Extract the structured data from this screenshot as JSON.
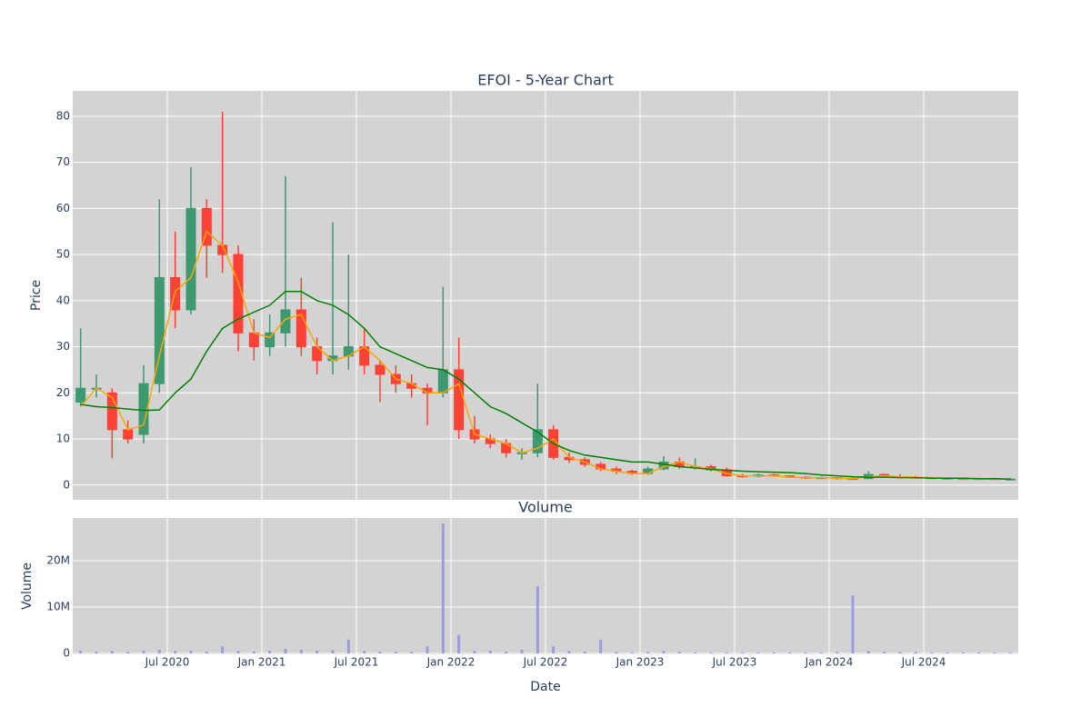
{
  "chart_data": [
    {
      "type": "candlestick",
      "title": "EFOI - 5-Year Chart",
      "ylabel": "Price",
      "increasing_color": "#3d9970",
      "decreasing_color": "#ff4136",
      "background": "#d3d3d3",
      "grid": true,
      "ylim": [
        -3.2,
        85.5
      ],
      "yticks": [
        0,
        10,
        20,
        30,
        40,
        50,
        60,
        70,
        80
      ],
      "x": [
        "2020-01",
        "2020-02",
        "2020-03",
        "2020-04",
        "2020-05",
        "2020-06",
        "2020-07",
        "2020-08",
        "2020-09",
        "2020-10",
        "2020-11",
        "2020-12",
        "2021-01",
        "2021-02",
        "2021-03",
        "2021-04",
        "2021-05",
        "2021-06",
        "2021-07",
        "2021-08",
        "2021-09",
        "2021-10",
        "2021-11",
        "2021-12",
        "2022-01",
        "2022-02",
        "2022-03",
        "2022-04",
        "2022-05",
        "2022-06",
        "2022-07",
        "2022-08",
        "2022-09",
        "2022-10",
        "2022-11",
        "2022-12",
        "2023-01",
        "2023-02",
        "2023-03",
        "2023-04",
        "2023-05",
        "2023-06",
        "2023-07",
        "2023-08",
        "2023-09",
        "2023-10",
        "2023-11",
        "2023-12",
        "2024-01",
        "2024-02",
        "2024-03",
        "2024-04",
        "2024-05",
        "2024-06",
        "2024-07",
        "2024-08",
        "2024-09",
        "2024-10",
        "2024-11",
        "2024-12"
      ],
      "open": [
        18,
        21,
        20,
        12,
        11,
        22,
        45,
        38,
        60,
        52,
        50,
        33,
        30,
        33,
        38,
        30,
        27,
        28,
        30,
        26,
        24,
        22,
        21,
        20,
        25,
        12,
        10,
        9,
        7,
        7,
        12,
        6,
        5.5,
        4.5,
        3.5,
        3,
        2.5,
        3.5,
        5,
        4,
        4,
        3.3,
        2,
        1.9,
        2.2,
        2,
        1.7,
        1.6,
        1.6,
        1.4,
        1.4,
        2.3,
        1.8,
        1.7,
        1.6,
        1.5,
        1.4,
        1.3,
        1.4,
        1.3
      ],
      "high": [
        34,
        24,
        21,
        14,
        26,
        62,
        55,
        69,
        62,
        81,
        52,
        36,
        37,
        67,
        45,
        32,
        57,
        50,
        34,
        27,
        26,
        24,
        22,
        43,
        32,
        15,
        11,
        10,
        8,
        22,
        13,
        7,
        6,
        5,
        4,
        3.3,
        4,
        6.3,
        6,
        5.8,
        4.4,
        3.8,
        2.4,
        2.5,
        2.5,
        2.1,
        1.9,
        1.8,
        1.7,
        1.6,
        3,
        2.5,
        2.4,
        2,
        1.8,
        1.7,
        1.5,
        1.5,
        1.6,
        1.5
      ],
      "low": [
        17,
        19,
        5.8,
        9,
        9,
        20,
        34,
        37,
        45,
        46,
        29,
        27,
        28,
        30,
        28,
        24,
        24,
        25,
        24,
        18,
        20,
        19,
        13,
        19,
        10,
        9,
        8,
        6,
        5.5,
        6,
        5.5,
        4.8,
        4,
        3,
        2.4,
        2.2,
        2.2,
        3.2,
        3.5,
        3.4,
        3,
        1.8,
        1.6,
        1.7,
        1.8,
        1.5,
        1.3,
        1.4,
        1.2,
        1.2,
        1.3,
        1.6,
        1.5,
        1.5,
        1.4,
        1.2,
        1.2,
        1.2,
        1.2,
        1.2
      ],
      "close": [
        21,
        21,
        12,
        10,
        22,
        45,
        38,
        60,
        52,
        50,
        33,
        30,
        33,
        38,
        30,
        27,
        28,
        30,
        26,
        24,
        22,
        21,
        20,
        25,
        12,
        10,
        9,
        7,
        7,
        12,
        6,
        5.5,
        4.5,
        3.5,
        3,
        2.5,
        3.5,
        5,
        4,
        4,
        3.3,
        2,
        1.9,
        2.2,
        2,
        1.7,
        1.6,
        1.6,
        1.4,
        1.4,
        2.3,
        1.8,
        1.7,
        1.6,
        1.5,
        1.4,
        1.3,
        1.4,
        1.3,
        1.3
      ],
      "lines": [
        {
          "color": "#ffa500",
          "values": [
            17,
            21,
            19,
            12,
            13,
            28,
            42,
            45,
            55,
            52,
            44,
            33,
            32,
            36,
            37,
            30,
            27,
            28,
            30,
            27,
            23,
            22,
            20,
            20,
            22,
            11,
            10,
            9,
            7,
            8,
            10,
            6,
            5,
            3.5,
            3,
            2.5,
            2.5,
            4,
            5,
            4,
            3.5,
            2.5,
            2,
            2,
            2,
            1.7,
            1.6,
            1.6,
            1.5,
            1.4,
            1.8,
            2,
            1.8,
            1.7,
            1.6,
            1.5,
            1.4,
            1.3,
            1.3,
            1.3
          ]
        },
        {
          "color": "#008000",
          "values": [
            17.5,
            17,
            16.8,
            16.5,
            16.2,
            16.3,
            20,
            23,
            29,
            34,
            36,
            37.5,
            39,
            42,
            42,
            40,
            39,
            37,
            34,
            30,
            28.5,
            27,
            25.5,
            25,
            23,
            20,
            17,
            15.5,
            13.5,
            11.5,
            9,
            7.5,
            6.5,
            6,
            5.5,
            5,
            5,
            4.5,
            4,
            3.7,
            3.4,
            3.2,
            3,
            2.9,
            2.8,
            2.7,
            2.5,
            2.2,
            2,
            1.8,
            1.7,
            1.7,
            1.6,
            1.6,
            1.5,
            1.5,
            1.5,
            1.4,
            1.4,
            1.3
          ]
        }
      ]
    },
    {
      "type": "bar",
      "title": "Volume",
      "ylabel": "Volume",
      "xlabel": "Date",
      "color": "#9c9ce0",
      "background": "#d3d3d3",
      "grid": true,
      "xlim": [
        "2020-01",
        "2024-12"
      ],
      "xticks": [
        {
          "value": "2020-07",
          "label": "Jul 2020"
        },
        {
          "value": "2021-01",
          "label": "Jan 2021"
        },
        {
          "value": "2021-07",
          "label": "Jul 2021"
        },
        {
          "value": "2022-01",
          "label": "Jan 2022"
        },
        {
          "value": "2022-07",
          "label": "Jul 2022"
        },
        {
          "value": "2023-01",
          "label": "Jan 2023"
        },
        {
          "value": "2023-07",
          "label": "Jul 2023"
        },
        {
          "value": "2024-01",
          "label": "Jan 2024"
        },
        {
          "value": "2024-07",
          "label": "Jul 2024"
        }
      ],
      "ylim": [
        -200000,
        29200000
      ],
      "yticks": [
        0,
        {
          "value": 10000000,
          "label": "10M"
        },
        {
          "value": 20000000,
          "label": "20M"
        }
      ],
      "x": [
        "2020-01",
        "2020-02",
        "2020-03",
        "2020-04",
        "2020-05",
        "2020-06",
        "2020-07",
        "2020-08",
        "2020-09",
        "2020-10",
        "2020-11",
        "2020-12",
        "2021-01",
        "2021-02",
        "2021-03",
        "2021-04",
        "2021-05",
        "2021-06",
        "2021-07",
        "2021-08",
        "2021-09",
        "2021-10",
        "2021-11",
        "2021-12",
        "2022-01",
        "2022-02",
        "2022-03",
        "2022-04",
        "2022-05",
        "2022-06",
        "2022-07",
        "2022-08",
        "2022-09",
        "2022-10",
        "2022-11",
        "2022-12",
        "2023-01",
        "2023-02",
        "2023-03",
        "2023-04",
        "2023-05",
        "2023-06",
        "2023-07",
        "2023-08",
        "2023-09",
        "2023-10",
        "2023-11",
        "2023-12",
        "2024-01",
        "2024-02",
        "2024-03",
        "2024-04",
        "2024-05",
        "2024-06",
        "2024-07",
        "2024-08",
        "2024-09",
        "2024-10",
        "2024-11",
        "2024-12"
      ],
      "values": [
        600000,
        400000,
        500000,
        300000,
        600000,
        800000,
        500000,
        600000,
        400000,
        1500000,
        500000,
        400000,
        600000,
        1000000,
        800000,
        600000,
        700000,
        3000000,
        500000,
        400000,
        300000,
        300000,
        1500000,
        28000000,
        4000000,
        500000,
        600000,
        400000,
        800000,
        14500000,
        1500000,
        500000,
        400000,
        3000000,
        300000,
        200000,
        300000,
        500000,
        300000,
        200000,
        200000,
        200000,
        200000,
        200000,
        200000,
        200000,
        200000,
        200000,
        300000,
        12500000,
        500000,
        300000,
        300000,
        300000,
        200000,
        200000,
        200000,
        200000,
        200000,
        200000
      ]
    }
  ]
}
